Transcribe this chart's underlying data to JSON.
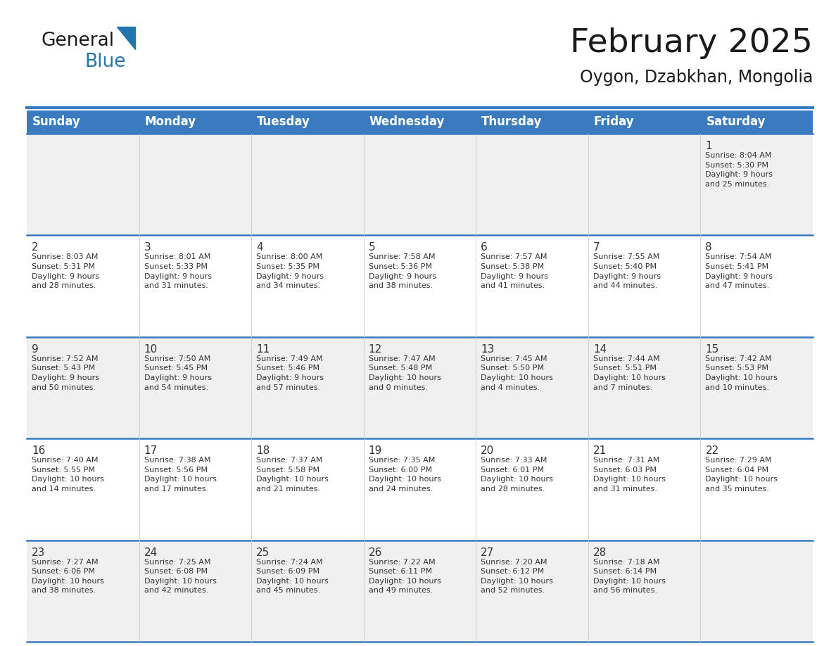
{
  "title": "February 2025",
  "subtitle": "Oygon, Dzabkhan, Mongolia",
  "days_of_week": [
    "Sunday",
    "Monday",
    "Tuesday",
    "Wednesday",
    "Thursday",
    "Friday",
    "Saturday"
  ],
  "header_bg": "#3a7bbf",
  "header_text": "#ffffff",
  "row_bg_odd": "#f0f0f0",
  "row_bg_even": "#ffffff",
  "border_color": "#3a7bbf",
  "text_color": "#333333",
  "logo_general_color": "#1a1a1a",
  "logo_blue_color": "#2176ae",
  "triangle_color": "#2176ae",
  "calendar_data": [
    [
      {
        "day": "",
        "info": ""
      },
      {
        "day": "",
        "info": ""
      },
      {
        "day": "",
        "info": ""
      },
      {
        "day": "",
        "info": ""
      },
      {
        "day": "",
        "info": ""
      },
      {
        "day": "",
        "info": ""
      },
      {
        "day": "1",
        "info": "Sunrise: 8:04 AM\nSunset: 5:30 PM\nDaylight: 9 hours\nand 25 minutes."
      }
    ],
    [
      {
        "day": "2",
        "info": "Sunrise: 8:03 AM\nSunset: 5:31 PM\nDaylight: 9 hours\nand 28 minutes."
      },
      {
        "day": "3",
        "info": "Sunrise: 8:01 AM\nSunset: 5:33 PM\nDaylight: 9 hours\nand 31 minutes."
      },
      {
        "day": "4",
        "info": "Sunrise: 8:00 AM\nSunset: 5:35 PM\nDaylight: 9 hours\nand 34 minutes."
      },
      {
        "day": "5",
        "info": "Sunrise: 7:58 AM\nSunset: 5:36 PM\nDaylight: 9 hours\nand 38 minutes."
      },
      {
        "day": "6",
        "info": "Sunrise: 7:57 AM\nSunset: 5:38 PM\nDaylight: 9 hours\nand 41 minutes."
      },
      {
        "day": "7",
        "info": "Sunrise: 7:55 AM\nSunset: 5:40 PM\nDaylight: 9 hours\nand 44 minutes."
      },
      {
        "day": "8",
        "info": "Sunrise: 7:54 AM\nSunset: 5:41 PM\nDaylight: 9 hours\nand 47 minutes."
      }
    ],
    [
      {
        "day": "9",
        "info": "Sunrise: 7:52 AM\nSunset: 5:43 PM\nDaylight: 9 hours\nand 50 minutes."
      },
      {
        "day": "10",
        "info": "Sunrise: 7:50 AM\nSunset: 5:45 PM\nDaylight: 9 hours\nand 54 minutes."
      },
      {
        "day": "11",
        "info": "Sunrise: 7:49 AM\nSunset: 5:46 PM\nDaylight: 9 hours\nand 57 minutes."
      },
      {
        "day": "12",
        "info": "Sunrise: 7:47 AM\nSunset: 5:48 PM\nDaylight: 10 hours\nand 0 minutes."
      },
      {
        "day": "13",
        "info": "Sunrise: 7:45 AM\nSunset: 5:50 PM\nDaylight: 10 hours\nand 4 minutes."
      },
      {
        "day": "14",
        "info": "Sunrise: 7:44 AM\nSunset: 5:51 PM\nDaylight: 10 hours\nand 7 minutes."
      },
      {
        "day": "15",
        "info": "Sunrise: 7:42 AM\nSunset: 5:53 PM\nDaylight: 10 hours\nand 10 minutes."
      }
    ],
    [
      {
        "day": "16",
        "info": "Sunrise: 7:40 AM\nSunset: 5:55 PM\nDaylight: 10 hours\nand 14 minutes."
      },
      {
        "day": "17",
        "info": "Sunrise: 7:38 AM\nSunset: 5:56 PM\nDaylight: 10 hours\nand 17 minutes."
      },
      {
        "day": "18",
        "info": "Sunrise: 7:37 AM\nSunset: 5:58 PM\nDaylight: 10 hours\nand 21 minutes."
      },
      {
        "day": "19",
        "info": "Sunrise: 7:35 AM\nSunset: 6:00 PM\nDaylight: 10 hours\nand 24 minutes."
      },
      {
        "day": "20",
        "info": "Sunrise: 7:33 AM\nSunset: 6:01 PM\nDaylight: 10 hours\nand 28 minutes."
      },
      {
        "day": "21",
        "info": "Sunrise: 7:31 AM\nSunset: 6:03 PM\nDaylight: 10 hours\nand 31 minutes."
      },
      {
        "day": "22",
        "info": "Sunrise: 7:29 AM\nSunset: 6:04 PM\nDaylight: 10 hours\nand 35 minutes."
      }
    ],
    [
      {
        "day": "23",
        "info": "Sunrise: 7:27 AM\nSunset: 6:06 PM\nDaylight: 10 hours\nand 38 minutes."
      },
      {
        "day": "24",
        "info": "Sunrise: 7:25 AM\nSunset: 6:08 PM\nDaylight: 10 hours\nand 42 minutes."
      },
      {
        "day": "25",
        "info": "Sunrise: 7:24 AM\nSunset: 6:09 PM\nDaylight: 10 hours\nand 45 minutes."
      },
      {
        "day": "26",
        "info": "Sunrise: 7:22 AM\nSunset: 6:11 PM\nDaylight: 10 hours\nand 49 minutes."
      },
      {
        "day": "27",
        "info": "Sunrise: 7:20 AM\nSunset: 6:12 PM\nDaylight: 10 hours\nand 52 minutes."
      },
      {
        "day": "28",
        "info": "Sunrise: 7:18 AM\nSunset: 6:14 PM\nDaylight: 10 hours\nand 56 minutes."
      },
      {
        "day": "",
        "info": ""
      }
    ]
  ],
  "title_fontsize": 34,
  "subtitle_fontsize": 17,
  "header_fontsize": 12,
  "day_num_fontsize": 11,
  "info_fontsize": 8
}
